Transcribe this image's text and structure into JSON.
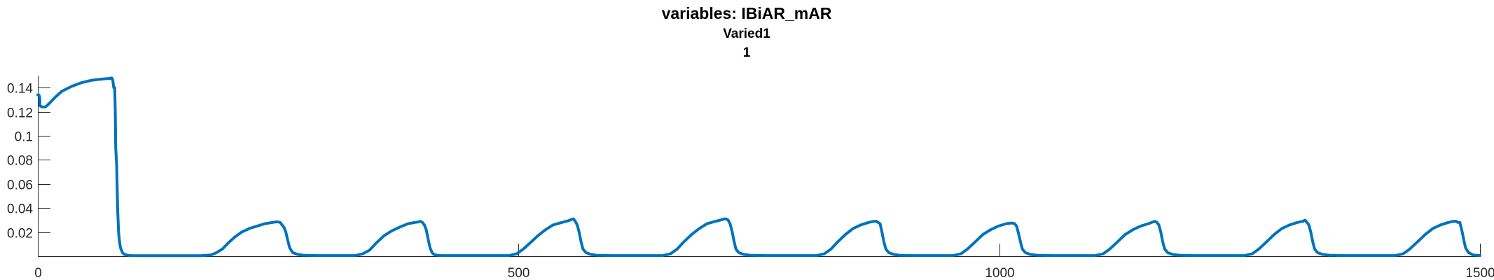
{
  "chart_data": {
    "type": "line",
    "title": "variables: IBiAR_mAR",
    "subtitle": "Varied1",
    "subtitle2": "1",
    "xlabel": "",
    "ylabel": "",
    "xlim": [
      0,
      1500
    ],
    "ylim": [
      0,
      0.15
    ],
    "xticks": [
      0,
      500,
      1000,
      1500
    ],
    "xtick_labels": [
      "0",
      "500",
      "1000",
      "1500"
    ],
    "yticks": [
      0.02,
      0.04,
      0.06,
      0.08,
      0.1,
      0.12,
      0.14
    ],
    "ytick_labels": [
      "0.02",
      "0.04",
      "0.06",
      "0.08",
      "0.1",
      "0.12",
      "0.14"
    ],
    "grid": false,
    "legend": "none",
    "series": [
      {
        "color": "#0072BD",
        "x": [
          0,
          1,
          2,
          2.2,
          4,
          8,
          12,
          18,
          25,
          35,
          45,
          55,
          65,
          72,
          77,
          78,
          79,
          80,
          80.6,
          81,
          82,
          83,
          84,
          85,
          86,
          88,
          90,
          93,
          97,
          102,
          110,
          170,
          180,
          186,
          192,
          198,
          205,
          212,
          220,
          228,
          236,
          244,
          248,
          250,
          252,
          254,
          256,
          258,
          260,
          262,
          265,
          270,
          276,
          290,
          330,
          338,
          345,
          352,
          360,
          368,
          376,
          385,
          392,
          396,
          398,
          400,
          402,
          404,
          406,
          408,
          410,
          412,
          415,
          420,
          427,
          440,
          490,
          498,
          505,
          512,
          520,
          528,
          536,
          545,
          552,
          555,
          557,
          559,
          561,
          563,
          565,
          567,
          570,
          575,
          581,
          596,
          650,
          658,
          665,
          672,
          680,
          688,
          696,
          705,
          710,
          714,
          716,
          718,
          720,
          722,
          724,
          726,
          729,
          734,
          741,
          756,
          810,
          818,
          825,
          832,
          840,
          848,
          856,
          864,
          870,
          872,
          874,
          876,
          878,
          880,
          882,
          885,
          890,
          896,
          910,
          952,
          960,
          967,
          975,
          983,
          991,
          999,
          1007,
          1012,
          1014,
          1016,
          1018,
          1020,
          1022,
          1024,
          1027,
          1032,
          1039,
          1054,
          1100,
          1108,
          1115,
          1123,
          1131,
          1139,
          1147,
          1155,
          1160,
          1162,
          1164,
          1166,
          1168,
          1170,
          1172,
          1175,
          1180,
          1187,
          1202,
          1255,
          1263,
          1270,
          1278,
          1286,
          1294,
          1302,
          1310,
          1316,
          1318,
          1320,
          1322,
          1324,
          1326,
          1328,
          1331,
          1336,
          1343,
          1358,
          1412,
          1420,
          1427,
          1435,
          1443,
          1451,
          1459,
          1467,
          1473,
          1475,
          1477,
          1479,
          1481,
          1483,
          1485,
          1488,
          1493,
          1500
        ],
        "y": [
          0.134,
          0.134,
          0.132,
          0.125,
          0.124,
          0.124,
          0.127,
          0.132,
          0.137,
          0.141,
          0.144,
          0.146,
          0.147,
          0.1475,
          0.148,
          0.146,
          0.14,
          0.14,
          0.12,
          0.09,
          0.075,
          0.04,
          0.02,
          0.012,
          0.007,
          0.003,
          0.0015,
          0.0008,
          0.0005,
          0.0004,
          0.0004,
          0.0004,
          0.001,
          0.003,
          0.006,
          0.011,
          0.016,
          0.02,
          0.023,
          0.025,
          0.027,
          0.028,
          0.0285,
          0.0285,
          0.028,
          0.026,
          0.024,
          0.02,
          0.013,
          0.007,
          0.003,
          0.0015,
          0.0008,
          0.0005,
          0.0005,
          0.002,
          0.005,
          0.011,
          0.017,
          0.021,
          0.024,
          0.027,
          0.028,
          0.0285,
          0.029,
          0.028,
          0.026,
          0.022,
          0.014,
          0.007,
          0.003,
          0.0015,
          0.0008,
          0.0005,
          0.0005,
          0.0005,
          0.0005,
          0.002,
          0.006,
          0.011,
          0.017,
          0.022,
          0.026,
          0.028,
          0.0295,
          0.0305,
          0.031,
          0.029,
          0.026,
          0.02,
          0.012,
          0.006,
          0.003,
          0.0015,
          0.0008,
          0.0005,
          0.0005,
          0.002,
          0.006,
          0.012,
          0.018,
          0.023,
          0.027,
          0.029,
          0.03,
          0.031,
          0.031,
          0.03,
          0.027,
          0.021,
          0.013,
          0.006,
          0.003,
          0.0015,
          0.0008,
          0.0005,
          0.0005,
          0.002,
          0.006,
          0.012,
          0.018,
          0.023,
          0.026,
          0.028,
          0.029,
          0.029,
          0.028,
          0.027,
          0.02,
          0.012,
          0.006,
          0.003,
          0.0015,
          0.0008,
          0.0005,
          0.0005,
          0.002,
          0.006,
          0.012,
          0.018,
          0.022,
          0.025,
          0.027,
          0.0275,
          0.0275,
          0.027,
          0.025,
          0.019,
          0.012,
          0.006,
          0.003,
          0.0015,
          0.0008,
          0.0005,
          0.0005,
          0.002,
          0.006,
          0.012,
          0.018,
          0.022,
          0.025,
          0.027,
          0.0285,
          0.029,
          0.028,
          0.026,
          0.02,
          0.012,
          0.006,
          0.003,
          0.0015,
          0.0008,
          0.0005,
          0.0005,
          0.002,
          0.006,
          0.012,
          0.018,
          0.023,
          0.026,
          0.028,
          0.029,
          0.03,
          0.028,
          0.026,
          0.02,
          0.012,
          0.006,
          0.003,
          0.0015,
          0.0008,
          0.0005,
          0.0005,
          0.002,
          0.006,
          0.012,
          0.018,
          0.023,
          0.026,
          0.028,
          0.029,
          0.029,
          0.028,
          0.028,
          0.022,
          0.014,
          0.007,
          0.003,
          0.001,
          0.0005
        ]
      }
    ]
  }
}
